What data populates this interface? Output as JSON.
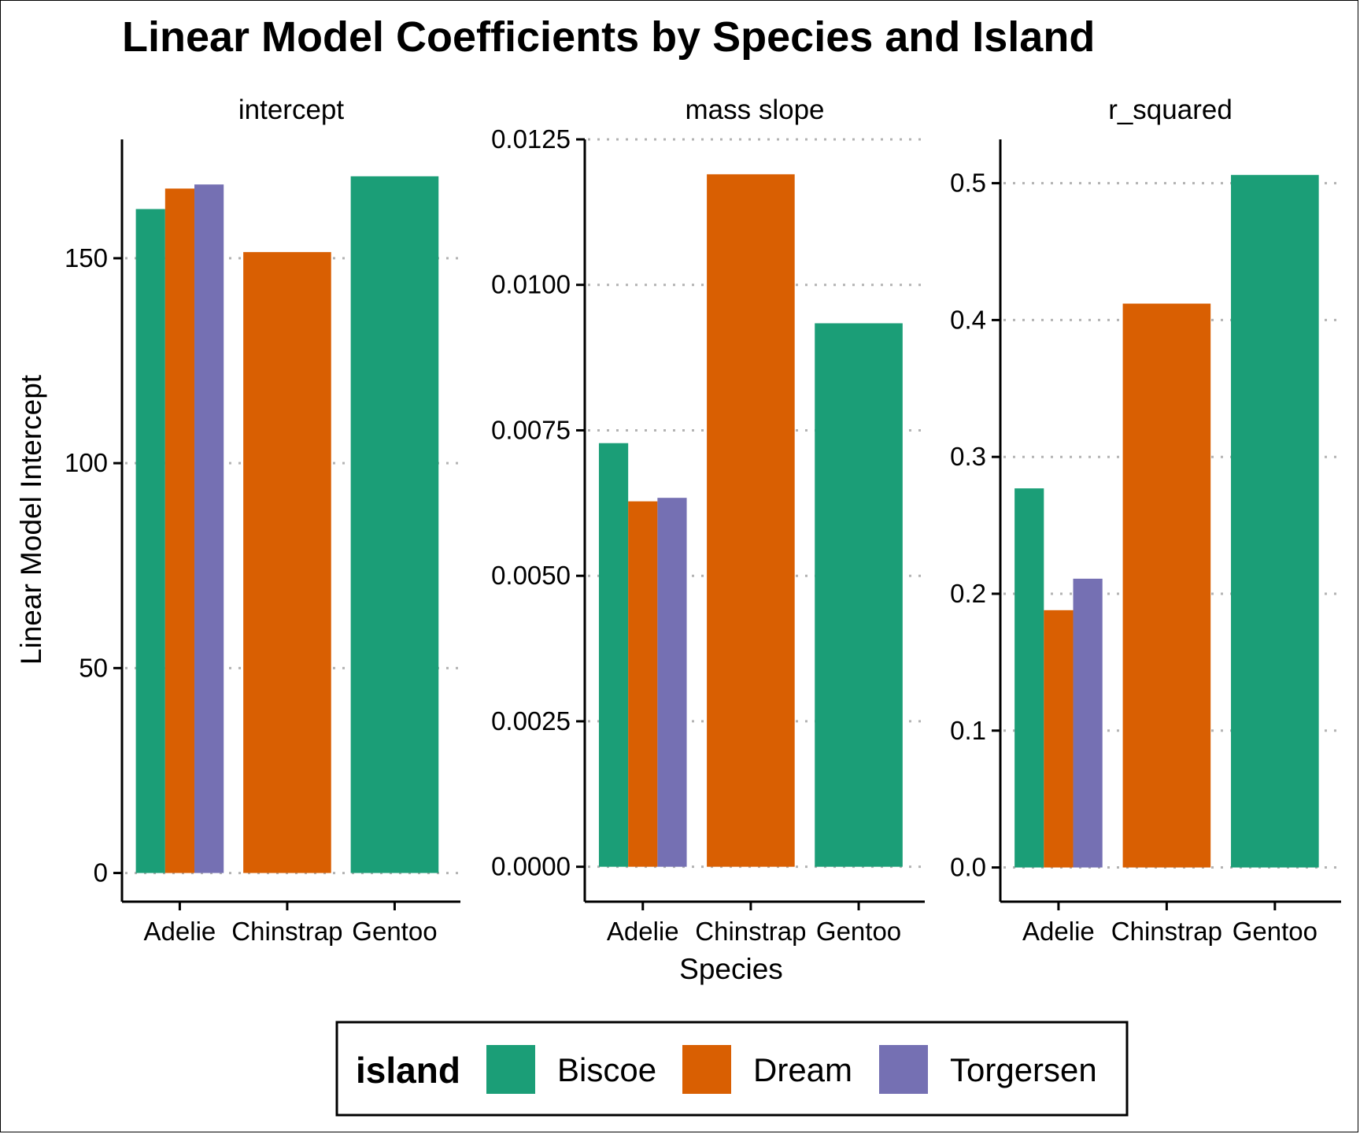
{
  "chart_data": {
    "type": "bar",
    "title": "Linear Model Coefficients by Species and Island",
    "xlabel": "Species",
    "ylabel": "Linear Model Intercept",
    "categories": [
      "Adelie",
      "Chinstrap",
      "Gentoo"
    ],
    "grid": "horizontal dotted",
    "legend": {
      "title": "island",
      "position": "bottom",
      "entries": [
        {
          "name": "Biscoe",
          "color": "#1b9e77"
        },
        {
          "name": "Dream",
          "color": "#d95f02"
        },
        {
          "name": "Torgersen",
          "color": "#7570b3"
        }
      ]
    },
    "panels": [
      {
        "label": "intercept",
        "ylim": [
          -7,
          179
        ],
        "ticks": [
          0,
          50,
          100,
          150
        ],
        "tick_labels": [
          "0",
          "50",
          "100",
          "150"
        ],
        "bars": [
          {
            "category": "Adelie",
            "island": "Biscoe",
            "value": 162
          },
          {
            "category": "Adelie",
            "island": "Dream",
            "value": 167
          },
          {
            "category": "Adelie",
            "island": "Torgersen",
            "value": 168
          },
          {
            "category": "Chinstrap",
            "island": "Dream",
            "value": 151.5
          },
          {
            "category": "Gentoo",
            "island": "Biscoe",
            "value": 170
          }
        ]
      },
      {
        "label": "mass slope",
        "ylim": [
          -0.0006,
          0.0125
        ],
        "ticks": [
          0,
          0.0025,
          0.005,
          0.0075,
          0.01,
          0.0125
        ],
        "tick_labels": [
          "0.0000",
          "0.0025",
          "0.0050",
          "0.0075",
          "0.0100",
          "0.0125"
        ],
        "bars": [
          {
            "category": "Adelie",
            "island": "Biscoe",
            "value": 0.00728
          },
          {
            "category": "Adelie",
            "island": "Dream",
            "value": 0.00628
          },
          {
            "category": "Adelie",
            "island": "Torgersen",
            "value": 0.00634
          },
          {
            "category": "Chinstrap",
            "island": "Dream",
            "value": 0.0119
          },
          {
            "category": "Gentoo",
            "island": "Biscoe",
            "value": 0.00934
          }
        ]
      },
      {
        "label": "r_squared",
        "ylim": [
          -0.025,
          0.532
        ],
        "ticks": [
          0,
          0.1,
          0.2,
          0.3,
          0.4,
          0.5
        ],
        "tick_labels": [
          "0.0",
          "0.1",
          "0.2",
          "0.3",
          "0.4",
          "0.5"
        ],
        "bars": [
          {
            "category": "Adelie",
            "island": "Biscoe",
            "value": 0.277
          },
          {
            "category": "Adelie",
            "island": "Dream",
            "value": 0.188
          },
          {
            "category": "Adelie",
            "island": "Torgersen",
            "value": 0.211
          },
          {
            "category": "Chinstrap",
            "island": "Dream",
            "value": 0.412
          },
          {
            "category": "Gentoo",
            "island": "Biscoe",
            "value": 0.506
          }
        ]
      }
    ]
  }
}
